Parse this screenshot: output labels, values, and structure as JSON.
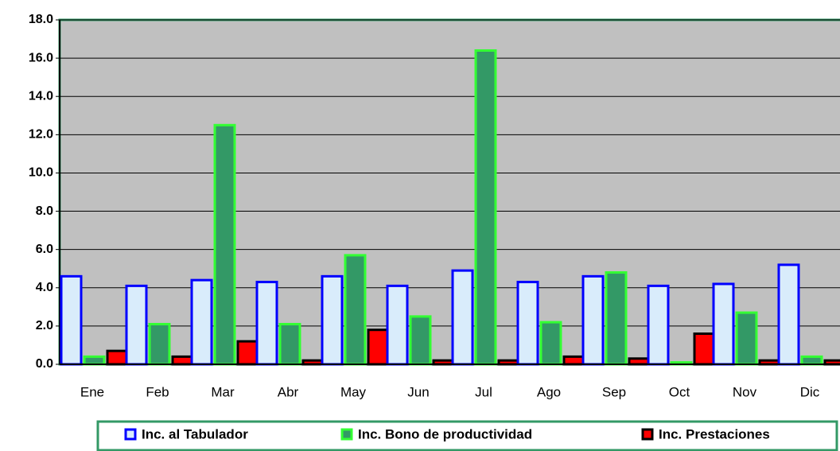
{
  "chart_data": {
    "type": "bar",
    "categories": [
      "Ene",
      "Feb",
      "Mar",
      "Abr",
      "May",
      "Jun",
      "Jul",
      "Ago",
      "Sep",
      "Oct",
      "Nov",
      "Dic"
    ],
    "series": [
      {
        "name": "Inc. al Tabulador",
        "color": "#d9ecfb",
        "edge": "#0000ff",
        "values": [
          4.6,
          4.1,
          4.4,
          4.3,
          4.6,
          4.1,
          4.9,
          4.3,
          4.6,
          4.1,
          4.2,
          5.2
        ]
      },
      {
        "name": "Inc. Bono de productividad",
        "color": "#339966",
        "edge": "#33ff33",
        "values": [
          0.4,
          2.1,
          12.5,
          2.1,
          5.7,
          2.5,
          16.4,
          2.2,
          4.8,
          0.1,
          2.7,
          0.4
        ]
      },
      {
        "name": "Inc. Prestaciones",
        "color": "#ff0000",
        "edge": "#000000",
        "values": [
          0.7,
          0.4,
          1.2,
          0.2,
          1.8,
          0.2,
          0.2,
          0.4,
          0.3,
          1.6,
          0.2,
          0.2
        ]
      }
    ],
    "ylim": [
      0,
      18
    ],
    "yticks": [
      {
        "value": 0,
        "label": "0.0"
      },
      {
        "value": 2,
        "label": "2.0"
      },
      {
        "value": 4,
        "label": "4.0"
      },
      {
        "value": 6,
        "label": "6.0"
      },
      {
        "value": 8,
        "label": "8.0"
      },
      {
        "value": 10,
        "label": "10.0"
      },
      {
        "value": 12,
        "label": "12.0"
      },
      {
        "value": 14,
        "label": "14.0"
      },
      {
        "value": 16,
        "label": "16.0"
      },
      {
        "value": 18,
        "label": "18.0"
      }
    ],
    "grid": true,
    "legend": "bottom",
    "plot_background": "#c0c0c0"
  }
}
